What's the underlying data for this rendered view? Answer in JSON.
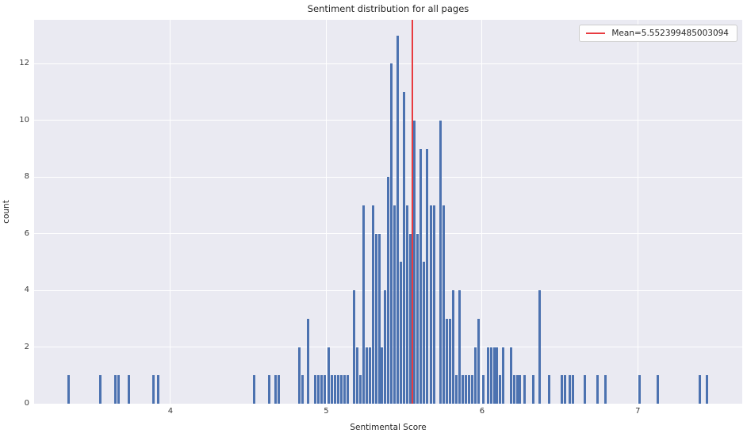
{
  "chart_data": {
    "type": "bar",
    "subtype": "histogram",
    "title": "Sentiment distribution for all pages",
    "xlabel": "Sentimental Score",
    "ylabel": "count",
    "xlim": [
      3.125,
      7.67
    ],
    "ylim": [
      0,
      13.55
    ],
    "x_ticks": [
      4,
      5,
      6,
      7
    ],
    "y_ticks": [
      0,
      2,
      4,
      6,
      8,
      10,
      12
    ],
    "grid": true,
    "bin_width": 0.0204,
    "bar_color": "#4c72b0",
    "plot_background": "#eaeaf2",
    "gridline_color": "#ffffff",
    "mean_line": {
      "value": 5.552399485003094,
      "color": "#e83b40"
    },
    "legend": {
      "position": "upper right",
      "entries": [
        {
          "label": "Mean=5.552399485003094",
          "color": "#e83b40"
        }
      ]
    },
    "bars": [
      [
        3.344,
        1
      ],
      [
        3.552,
        1
      ],
      [
        3.649,
        1
      ],
      [
        3.669,
        1
      ],
      [
        3.735,
        1
      ],
      [
        3.893,
        1
      ],
      [
        3.919,
        1
      ],
      [
        4.539,
        1
      ],
      [
        4.636,
        1
      ],
      [
        4.677,
        1
      ],
      [
        4.697,
        1
      ],
      [
        4.829,
        2
      ],
      [
        4.85,
        1
      ],
      [
        4.885,
        3
      ],
      [
        4.931,
        1
      ],
      [
        4.952,
        1
      ],
      [
        4.972,
        1
      ],
      [
        4.992,
        1
      ],
      [
        5.018,
        2
      ],
      [
        5.038,
        1
      ],
      [
        5.058,
        1
      ],
      [
        5.079,
        1
      ],
      [
        5.099,
        1
      ],
      [
        5.12,
        1
      ],
      [
        5.14,
        1
      ],
      [
        5.181,
        4
      ],
      [
        5.2,
        2
      ],
      [
        5.22,
        1
      ],
      [
        5.24,
        7
      ],
      [
        5.26,
        2
      ],
      [
        5.28,
        2
      ],
      [
        5.3,
        7
      ],
      [
        5.32,
        6
      ],
      [
        5.339,
        6
      ],
      [
        5.359,
        2
      ],
      [
        5.379,
        4
      ],
      [
        5.399,
        8
      ],
      [
        5.419,
        12
      ],
      [
        5.438,
        7
      ],
      [
        5.458,
        13
      ],
      [
        5.478,
        5
      ],
      [
        5.498,
        11
      ],
      [
        5.518,
        7
      ],
      [
        5.538,
        6
      ],
      [
        5.567,
        10
      ],
      [
        5.588,
        6
      ],
      [
        5.608,
        9
      ],
      [
        5.628,
        5
      ],
      [
        5.649,
        9
      ],
      [
        5.674,
        7
      ],
      [
        5.695,
        7
      ],
      [
        5.735,
        10
      ],
      [
        5.756,
        7
      ],
      [
        5.776,
        3
      ],
      [
        5.796,
        3
      ],
      [
        5.817,
        4
      ],
      [
        5.837,
        1
      ],
      [
        5.857,
        4
      ],
      [
        5.878,
        1
      ],
      [
        5.898,
        1
      ],
      [
        5.918,
        1
      ],
      [
        5.939,
        1
      ],
      [
        5.959,
        2
      ],
      [
        5.979,
        3
      ],
      [
        6.01,
        1
      ],
      [
        6.041,
        2
      ],
      [
        6.061,
        2
      ],
      [
        6.081,
        2
      ],
      [
        6.097,
        2
      ],
      [
        6.117,
        1
      ],
      [
        6.137,
        2
      ],
      [
        6.188,
        2
      ],
      [
        6.208,
        1
      ],
      [
        6.229,
        1
      ],
      [
        6.244,
        1
      ],
      [
        6.275,
        1
      ],
      [
        6.331,
        1
      ],
      [
        6.371,
        4
      ],
      [
        6.432,
        1
      ],
      [
        6.514,
        1
      ],
      [
        6.534,
        1
      ],
      [
        6.565,
        1
      ],
      [
        6.585,
        1
      ],
      [
        6.661,
        1
      ],
      [
        6.743,
        1
      ],
      [
        6.794,
        1
      ],
      [
        7.013,
        1
      ],
      [
        7.13,
        1
      ],
      [
        7.4,
        1
      ],
      [
        7.445,
        1
      ]
    ]
  }
}
